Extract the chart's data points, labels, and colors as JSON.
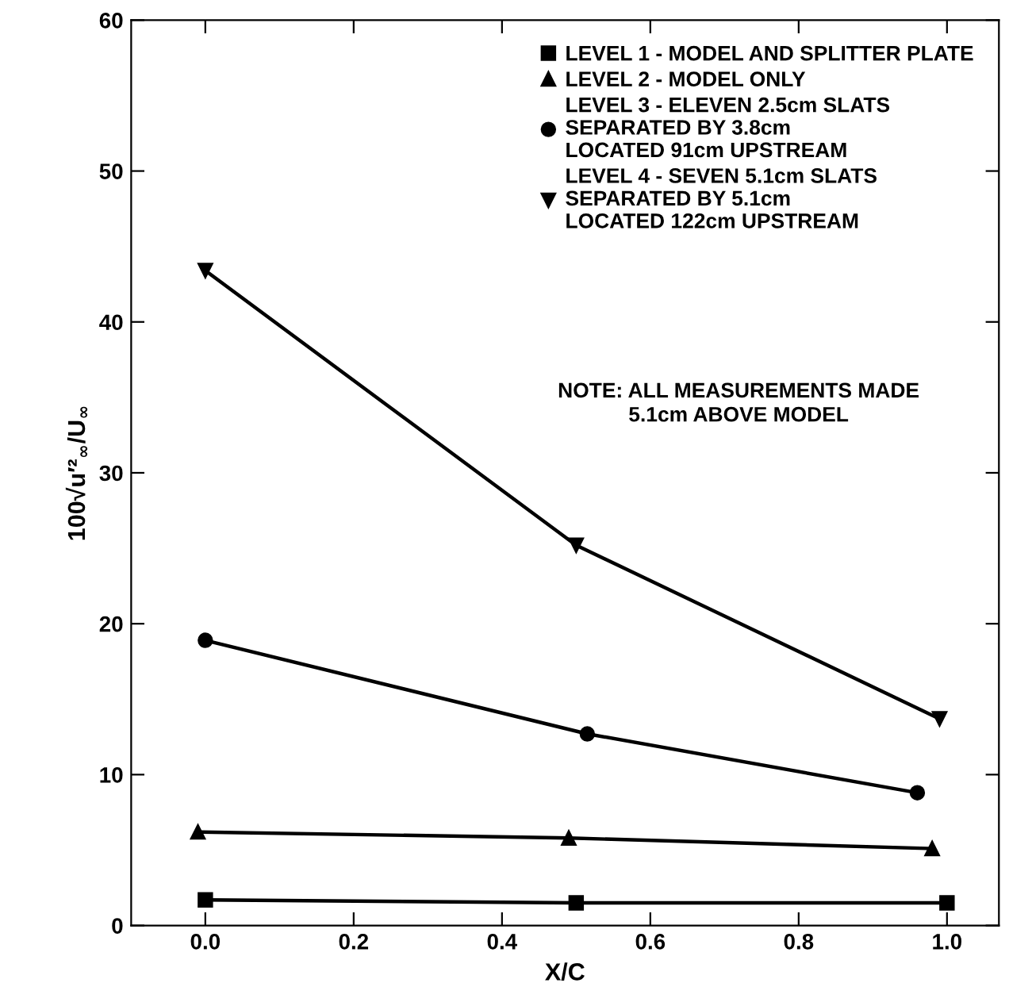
{
  "chart_data": {
    "type": "line",
    "xlabel": "X/C",
    "ylabel": "100√u′²$_{∞}$/U$_{∞}$",
    "xlim": [
      -0.1,
      1.07
    ],
    "xticks": [
      {
        "value": 0,
        "label": "0.0"
      },
      0.2,
      0.4,
      0.6,
      0.8,
      {
        "value": 1,
        "label": "1.0"
      }
    ],
    "ylim": [
      0,
      60
    ],
    "yticks": [
      0,
      10,
      20,
      30,
      40,
      50,
      60
    ],
    "grid": false,
    "legend": "top right",
    "series": [
      {
        "name": "LEVEL 1 - MODEL AND SPLITTER PLATE",
        "color": "#000000",
        "marker": "square",
        "x": [
          0.0,
          0.5,
          1.0
        ],
        "values": [
          1.7,
          1.5,
          1.5
        ]
      },
      {
        "name": "LEVEL 2 - MODEL ONLY",
        "color": "#000000",
        "marker": "triangle",
        "x": [
          -0.01,
          0.49,
          0.98
        ],
        "values": [
          6.2,
          5.8,
          5.1
        ]
      },
      {
        "name": "LEVEL 3 - ELEVEN 2.5cm SLATS\nSEPARATED BY 3.8cm\nLOCATED 91cm UPSTREAM",
        "color": "#000000",
        "marker": "circle",
        "x": [
          0.0,
          0.515,
          0.96
        ],
        "values": [
          18.9,
          12.7,
          8.8
        ]
      },
      {
        "name": "LEVEL 4 - SEVEN 5.1cm SLATS\nSEPARATED BY 5.1cm\nLOCATED 122cm UPSTREAM",
        "color": "#000000",
        "marker": "triangle_down",
        "x": [
          0.0,
          0.5,
          0.99
        ],
        "values": [
          43.4,
          25.2,
          13.7
        ]
      }
    ],
    "annotations": [
      "NOTE: ALL MEASUREMENTS MADE\n5.1cm ABOVE MODEL"
    ]
  }
}
